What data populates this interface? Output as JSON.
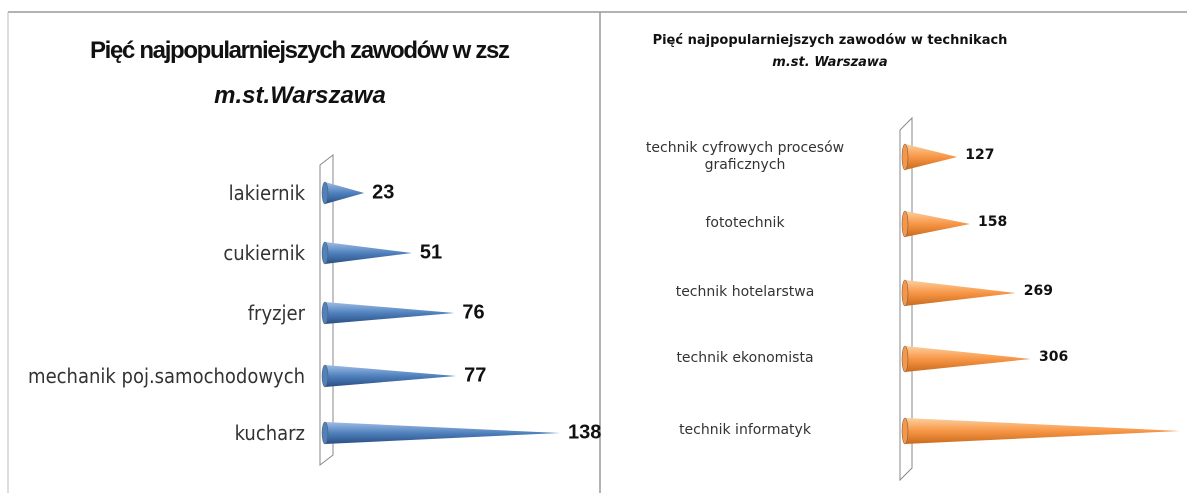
{
  "chart_data": [
    {
      "type": "cone-bar",
      "title": "Pięć najpopularniejszych zawodów w zsz",
      "subtitle": "m.st.Warszawa",
      "categories": [
        "lakiernik",
        "cukiernik",
        "fryzjer",
        "mechanik poj.samochodowych",
        "kucharz"
      ],
      "values": [
        23,
        51,
        76,
        77,
        138
      ],
      "color": "#4f81bd"
    },
    {
      "type": "cone-bar",
      "title": "Pięć najpopularniejszych zawodów w technikach",
      "subtitle": "m.st. Warszawa",
      "categories": [
        "technik cyfrowych procesów graficznych",
        "fototechnik",
        "technik hotelarstwa",
        "technik ekonomista",
        "technik informatyk"
      ],
      "values": [
        127,
        158,
        269,
        306,
        668
      ],
      "color": "#f79646"
    }
  ]
}
